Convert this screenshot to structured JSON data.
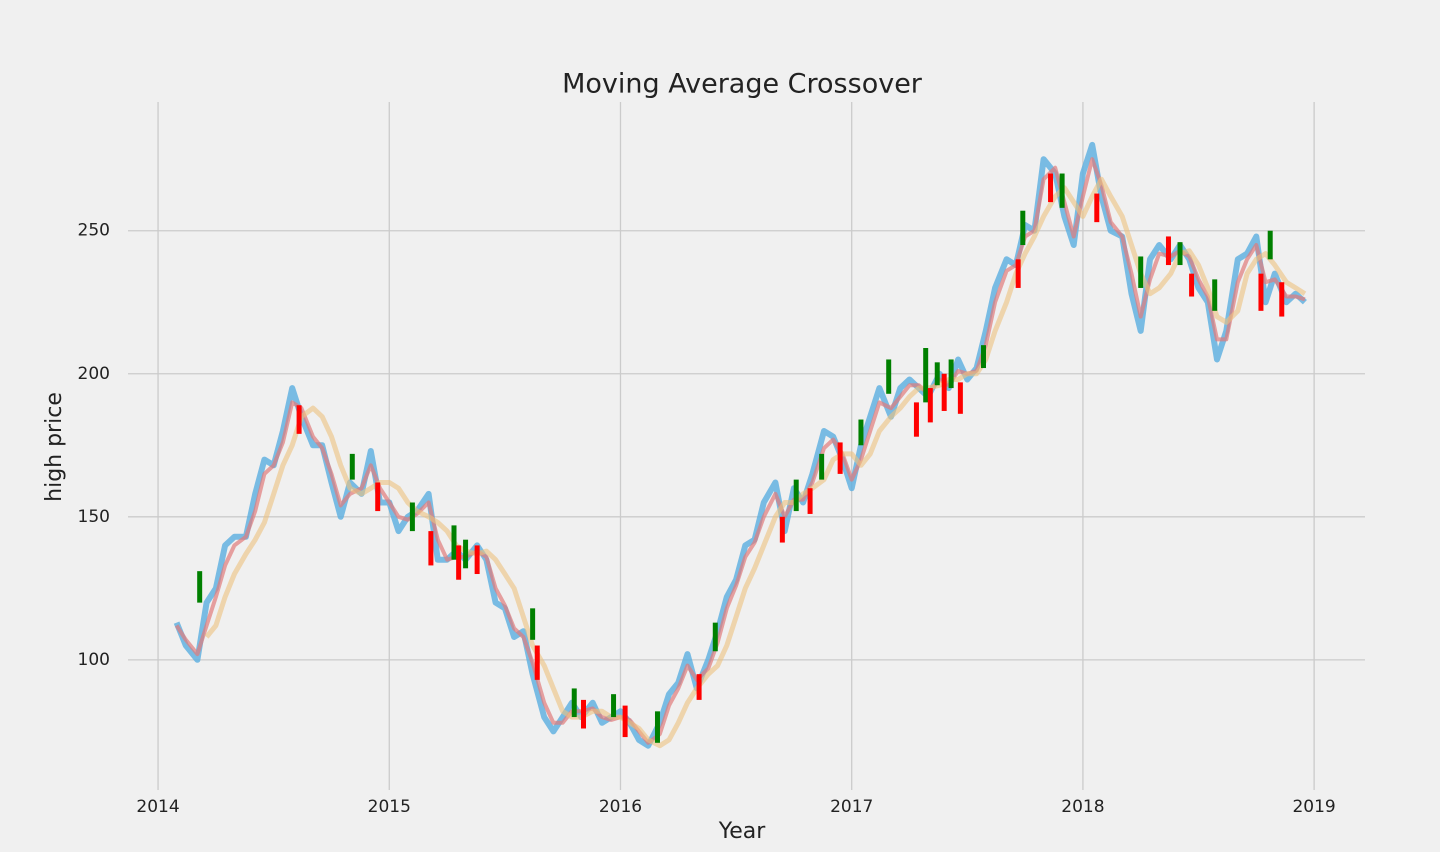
{
  "chart_data": {
    "type": "line",
    "title": "Moving Average Crossover",
    "x_label": "Year",
    "y_label": "high price",
    "x": [
      2014.08,
      2014.12,
      2014.17,
      2014.21,
      2014.25,
      2014.29,
      2014.33,
      2014.38,
      2014.42,
      2014.46,
      2014.5,
      2014.54,
      2014.58,
      2014.62,
      2014.67,
      2014.71,
      2014.75,
      2014.79,
      2014.83,
      2014.88,
      2014.92,
      2014.96,
      2015.0,
      2015.04,
      2015.08,
      2015.12,
      2015.17,
      2015.21,
      2015.25,
      2015.29,
      2015.33,
      2015.38,
      2015.42,
      2015.46,
      2015.5,
      2015.54,
      2015.58,
      2015.62,
      2015.67,
      2015.71,
      2015.75,
      2015.79,
      2015.83,
      2015.88,
      2015.92,
      2015.96,
      2016.0,
      2016.04,
      2016.08,
      2016.12,
      2016.17,
      2016.21,
      2016.25,
      2016.29,
      2016.33,
      2016.38,
      2016.42,
      2016.46,
      2016.5,
      2016.54,
      2016.58,
      2016.62,
      2016.67,
      2016.71,
      2016.75,
      2016.79,
      2016.83,
      2016.88,
      2016.92,
      2016.96,
      2017.0,
      2017.04,
      2017.08,
      2017.12,
      2017.17,
      2017.21,
      2017.25,
      2017.29,
      2017.33,
      2017.38,
      2017.42,
      2017.46,
      2017.5,
      2017.54,
      2017.58,
      2017.62,
      2017.67,
      2017.71,
      2017.75,
      2017.79,
      2017.83,
      2017.88,
      2017.92,
      2017.96,
      2018.0,
      2018.04,
      2018.08,
      2018.12,
      2018.17,
      2018.21,
      2018.25,
      2018.29,
      2018.33,
      2018.38,
      2018.42,
      2018.46,
      2018.5,
      2018.54,
      2018.58,
      2018.62,
      2018.67,
      2018.71,
      2018.75,
      2018.79,
      2018.83,
      2018.88,
      2018.92,
      2018.96
    ],
    "series": [
      {
        "color": "#5aaee0",
        "values": [
          113,
          105,
          100,
          120,
          125,
          140,
          143,
          143,
          158,
          170,
          168,
          180,
          195,
          185,
          175,
          175,
          162,
          150,
          162,
          158,
          173,
          155,
          155,
          145,
          150,
          152,
          158,
          135,
          135,
          138,
          135,
          140,
          135,
          120,
          118,
          108,
          110,
          95,
          80,
          75,
          80,
          85,
          80,
          85,
          78,
          80,
          82,
          78,
          72,
          70,
          78,
          88,
          92,
          102,
          90,
          100,
          110,
          122,
          128,
          140,
          142,
          155,
          162,
          145,
          160,
          155,
          165,
          180,
          178,
          170,
          160,
          175,
          185,
          195,
          185,
          195,
          198,
          195,
          192,
          200,
          195,
          205,
          198,
          202,
          215,
          230,
          240,
          238,
          252,
          250,
          275,
          270,
          255,
          245,
          270,
          280,
          262,
          250,
          248,
          228,
          215,
          240,
          245,
          240,
          245,
          240,
          230,
          225,
          205,
          215,
          240,
          242,
          248,
          225,
          235,
          225,
          228,
          225
        ]
      },
      {
        "color": "#e07a7a",
        "values": [
          112,
          107,
          102,
          112,
          122,
          133,
          140,
          143,
          152,
          165,
          168,
          176,
          190,
          188,
          178,
          174,
          165,
          154,
          158,
          160,
          168,
          160,
          155,
          150,
          149,
          151,
          155,
          142,
          135,
          136,
          136,
          138,
          136,
          125,
          119,
          111,
          108,
          99,
          85,
          78,
          78,
          82,
          82,
          83,
          80,
          79,
          80,
          79,
          75,
          71,
          74,
          84,
          90,
          98,
          93,
          97,
          106,
          118,
          126,
          136,
          141,
          150,
          158,
          150,
          156,
          156,
          162,
          174,
          177,
          172,
          163,
          170,
          180,
          190,
          188,
          192,
          196,
          196,
          193,
          198,
          196,
          201,
          200,
          201,
          210,
          225,
          236,
          238,
          248,
          250,
          268,
          272,
          260,
          248,
          262,
          275,
          266,
          253,
          248,
          235,
          220,
          233,
          242,
          241,
          243,
          241,
          233,
          227,
          212,
          212,
          232,
          240,
          245,
          232,
          233,
          227,
          227,
          226
        ]
      },
      {
        "color": "#ecc27e",
        "values": [
          null,
          null,
          null,
          108,
          112,
          122,
          130,
          137,
          142,
          148,
          158,
          168,
          175,
          185,
          188,
          185,
          178,
          168,
          160,
          158,
          160,
          162,
          162,
          160,
          155,
          152,
          150,
          148,
          145,
          140,
          138,
          137,
          138,
          135,
          130,
          125,
          115,
          105,
          98,
          90,
          82,
          80,
          80,
          82,
          82,
          80,
          80,
          78,
          76,
          72,
          70,
          72,
          78,
          85,
          90,
          95,
          98,
          105,
          115,
          125,
          132,
          140,
          150,
          155,
          155,
          158,
          160,
          163,
          170,
          172,
          172,
          168,
          172,
          180,
          185,
          188,
          192,
          195,
          195,
          196,
          198,
          198,
          200,
          200,
          205,
          215,
          225,
          235,
          242,
          248,
          255,
          262,
          265,
          260,
          255,
          262,
          268,
          262,
          255,
          245,
          235,
          228,
          230,
          235,
          242,
          243,
          238,
          230,
          220,
          218,
          222,
          235,
          240,
          242,
          238,
          232,
          230,
          228
        ]
      }
    ],
    "signals": [
      {
        "color": "green",
        "x": [
          2014.18,
          2014.84,
          2015.1,
          2015.28,
          2015.33,
          2015.62,
          2015.8,
          2015.97,
          2016.16,
          2016.41,
          2016.76,
          2016.87,
          2017.04,
          2017.16,
          2017.32,
          2017.37,
          2017.43,
          2017.57,
          2017.74,
          2017.91,
          2018.25,
          2018.42,
          2018.57,
          2018.81
        ],
        "low": [
          120,
          163,
          145,
          135,
          132,
          107,
          80,
          80,
          71,
          103,
          152,
          163,
          175,
          193,
          190,
          196,
          195,
          202,
          245,
          258,
          230,
          238,
          222,
          240
        ],
        "high": [
          131,
          172,
          155,
          147,
          142,
          118,
          90,
          88,
          82,
          113,
          163,
          172,
          184,
          205,
          209,
          204,
          205,
          210,
          257,
          270,
          241,
          246,
          233,
          250
        ]
      },
      {
        "color": "red",
        "x": [
          2014.61,
          2014.95,
          2015.18,
          2015.3,
          2015.38,
          2015.64,
          2015.84,
          2016.02,
          2016.34,
          2016.7,
          2016.82,
          2016.95,
          2017.28,
          2017.34,
          2017.4,
          2017.47,
          2017.72,
          2017.86,
          2018.06,
          2018.37,
          2018.47,
          2018.77,
          2018.86
        ],
        "low": [
          179,
          152,
          133,
          128,
          130,
          93,
          76,
          73,
          86,
          141,
          151,
          165,
          178,
          183,
          187,
          186,
          230,
          260,
          253,
          238,
          227,
          222,
          220
        ],
        "high": [
          189,
          162,
          145,
          140,
          140,
          105,
          86,
          84,
          95,
          150,
          160,
          176,
          190,
          195,
          200,
          197,
          240,
          270,
          263,
          248,
          235,
          235,
          232
        ]
      }
    ],
    "xlim": [
      2013.87,
      2019.22
    ],
    "xticks": [
      2014,
      2015,
      2016,
      2017,
      2018,
      2019
    ],
    "ylim": [
      54.5,
      295
    ],
    "yticks": [
      100,
      150,
      200,
      250
    ],
    "grid": true
  }
}
